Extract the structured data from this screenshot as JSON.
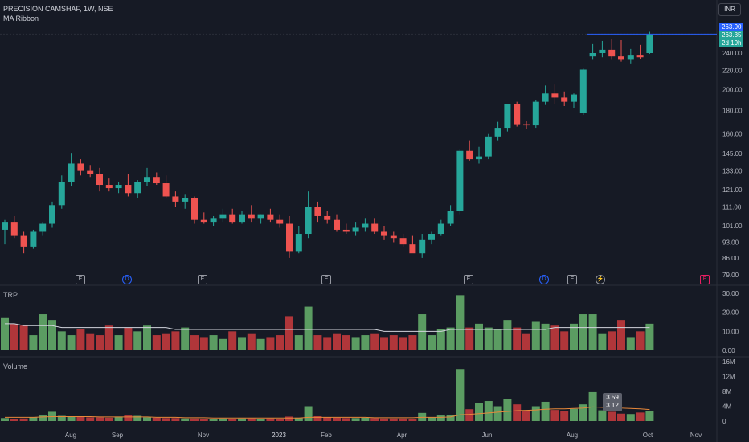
{
  "header": {
    "title": "PRECISION CAMSHAF, 1W, NSE",
    "indicator": "MA Ribbon",
    "currency": "INR"
  },
  "price_tags": {
    "line": "263.90",
    "last": "263.35",
    "countdown": "2d 19h"
  },
  "events": [
    "E",
    "D",
    "E",
    "E",
    "E",
    "D",
    "E",
    "⚡",
    "E"
  ],
  "panes": {
    "trp": {
      "label": "TRP"
    },
    "volume": {
      "label": "Volume",
      "tooltip_a": "3.59",
      "tooltip_b": "3.12"
    }
  },
  "colors": {
    "up": "#26a69a",
    "down": "#ef5350",
    "bg": "#161a25",
    "line": "#2962ff"
  },
  "chart_data": [
    {
      "type": "candlestick",
      "title": "PRECISION CAMSHAF, 1W, NSE",
      "y_axis": {
        "scale": "log",
        "ticks": [
          79,
          86,
          93,
          101,
          111,
          121,
          133,
          145,
          160,
          180,
          200,
          220,
          240
        ],
        "tick_labels": [
          "79.00",
          "86.00",
          "93.00",
          "101.00",
          "111.00",
          "121.00",
          "133.00",
          "145.00",
          "160.00",
          "180.00",
          "200.00",
          "220.00",
          "240.00"
        ]
      },
      "x_axis": {
        "tick_labels": [
          "Aug",
          "Sep",
          "Nov",
          "2023",
          "Feb",
          "Apr",
          "Jun",
          "Aug",
          "Oct",
          "Nov"
        ]
      },
      "ohlc": [
        [
          99,
          104,
          92,
          103
        ],
        [
          103,
          106,
          95,
          96
        ],
        [
          96,
          98,
          88,
          91
        ],
        [
          91,
          99,
          90,
          98
        ],
        [
          98,
          103,
          96,
          102
        ],
        [
          102,
          114,
          100,
          112
        ],
        [
          112,
          130,
          110,
          126
        ],
        [
          126,
          145,
          123,
          138
        ],
        [
          138,
          141,
          130,
          133
        ],
        [
          133,
          137,
          129,
          131
        ],
        [
          131,
          135,
          120,
          124
        ],
        [
          124,
          128,
          120,
          122
        ],
        [
          122,
          126,
          119,
          124
        ],
        [
          124,
          131,
          117,
          119
        ],
        [
          119,
          127,
          116,
          126
        ],
        [
          126,
          135,
          123,
          129
        ],
        [
          129,
          132,
          124,
          125
        ],
        [
          125,
          130,
          116,
          117
        ],
        [
          117,
          120,
          111,
          114
        ],
        [
          114,
          118,
          110,
          116
        ],
        [
          116,
          117,
          102,
          104
        ],
        [
          104,
          108,
          102,
          103
        ],
        [
          103,
          106,
          101,
          105
        ],
        [
          105,
          110,
          103,
          107
        ],
        [
          107,
          110,
          102,
          103
        ],
        [
          103,
          109,
          102,
          107
        ],
        [
          107,
          112,
          103,
          105
        ],
        [
          105,
          107,
          102,
          107
        ],
        [
          107,
          110,
          103,
          104
        ],
        [
          104,
          107,
          100,
          102
        ],
        [
          102,
          106,
          86,
          89
        ],
        [
          89,
          101,
          88,
          97
        ],
        [
          97,
          120,
          95,
          111
        ],
        [
          111,
          114,
          103,
          106
        ],
        [
          106,
          109,
          102,
          104
        ],
        [
          104,
          107,
          98,
          99
        ],
        [
          99,
          102,
          97,
          98
        ],
        [
          98,
          103,
          96,
          100
        ],
        [
          100,
          105,
          98,
          102
        ],
        [
          102,
          105,
          97,
          98
        ],
        [
          98,
          101,
          94,
          96
        ],
        [
          96,
          98,
          93,
          95
        ],
        [
          95,
          97,
          91,
          92
        ],
        [
          92,
          96,
          89,
          88
        ],
        [
          88,
          97,
          86,
          94
        ],
        [
          94,
          98,
          92,
          97
        ],
        [
          97,
          104,
          96,
          102
        ],
        [
          102,
          112,
          101,
          109
        ],
        [
          109,
          148,
          107,
          147
        ],
        [
          147,
          155,
          140,
          141
        ],
        [
          141,
          150,
          138,
          143
        ],
        [
          143,
          160,
          141,
          158
        ],
        [
          158,
          170,
          155,
          165
        ],
        [
          165,
          186,
          162,
          186
        ],
        [
          186,
          188,
          166,
          168
        ],
        [
          168,
          171,
          164,
          167
        ],
        [
          167,
          190,
          165,
          188
        ],
        [
          188,
          204,
          185,
          196
        ],
        [
          196,
          205,
          186,
          192
        ],
        [
          192,
          198,
          184,
          188
        ],
        [
          188,
          196,
          182,
          195
        ],
        [
          178,
          222,
          176,
          221
        ],
        [
          236,
          251,
          232,
          240
        ],
        [
          240,
          255,
          235,
          244
        ],
        [
          244,
          258,
          232,
          236
        ],
        [
          236,
          256,
          230,
          232
        ],
        [
          232,
          245,
          227,
          237
        ],
        [
          237,
          250,
          233,
          235
        ],
        [
          240,
          267,
          239,
          263.35
        ]
      ]
    },
    {
      "type": "bar",
      "title": "TRP",
      "y_axis": {
        "ticks": [
          0,
          10,
          20,
          30
        ],
        "tick_labels": [
          "0.00",
          "10.00",
          "20.00",
          "30.00"
        ]
      },
      "values": [
        17,
        14,
        13,
        8,
        19,
        16,
        10,
        8,
        11,
        9,
        8,
        13,
        8,
        12,
        10,
        13,
        8,
        9,
        10,
        12,
        8,
        7,
        8,
        6,
        10,
        7,
        9,
        6,
        7,
        8,
        18,
        8,
        23,
        8,
        7,
        9,
        8,
        7,
        8,
        9,
        7,
        8,
        7,
        8,
        19,
        8,
        11,
        12,
        29,
        12,
        14,
        12,
        11,
        16,
        12,
        9,
        15,
        14,
        13,
        10,
        14,
        19,
        19,
        9,
        10,
        16,
        7,
        10,
        14
      ],
      "ma": [
        14,
        14,
        13,
        13,
        13,
        13,
        12,
        12,
        12,
        12,
        12,
        12,
        12,
        12,
        12,
        12,
        12,
        12,
        11,
        11,
        11,
        11,
        11,
        11,
        11,
        11,
        11,
        11,
        11,
        11,
        11,
        11,
        11,
        11,
        11,
        11,
        11,
        11,
        11,
        11,
        10,
        10,
        10,
        10,
        10,
        10,
        10,
        11,
        11,
        11,
        11,
        11,
        11,
        11,
        11,
        11,
        11,
        11,
        12,
        12,
        12,
        12,
        12,
        12,
        12,
        12,
        12,
        12,
        12
      ]
    },
    {
      "type": "bar",
      "title": "Volume",
      "y_axis": {
        "ticks": [
          0,
          4,
          8,
          12,
          16
        ],
        "tick_labels": [
          "0",
          "4M",
          "8M",
          "12M",
          "16M"
        ]
      },
      "values": [
        0.8,
        0.6,
        0.7,
        1.0,
        1.5,
        2.5,
        1.4,
        1.2,
        1.1,
        1.0,
        1.0,
        0.9,
        1.2,
        1.5,
        1.4,
        1.0,
        0.9,
        0.8,
        0.8,
        0.7,
        0.7,
        0.6,
        0.6,
        0.7,
        0.6,
        0.7,
        0.7,
        0.6,
        0.7,
        0.6,
        1.2,
        0.9,
        4.0,
        1.3,
        1.0,
        0.9,
        0.8,
        0.8,
        0.9,
        0.8,
        0.7,
        0.7,
        0.7,
        0.6,
        2.2,
        1.0,
        1.5,
        1.7,
        14.0,
        3.2,
        4.8,
        5.4,
        4.0,
        6.0,
        4.5,
        2.8,
        4.0,
        5.2,
        3.0,
        2.6,
        3.3,
        4.5,
        7.8,
        2.9,
        2.5,
        2.0,
        1.9,
        2.3,
        2.7
      ],
      "ma": [
        1.0,
        1.0,
        1.0,
        1.0,
        1.1,
        1.2,
        1.2,
        1.2,
        1.2,
        1.2,
        1.1,
        1.1,
        1.1,
        1.1,
        1.1,
        1.1,
        1.0,
        1.0,
        1.0,
        0.9,
        0.9,
        0.9,
        0.8,
        0.8,
        0.8,
        0.8,
        0.8,
        0.8,
        0.8,
        0.8,
        0.8,
        0.8,
        1.0,
        1.0,
        1.0,
        1.0,
        1.0,
        1.0,
        1.0,
        0.9,
        0.9,
        0.9,
        0.9,
        0.9,
        1.0,
        1.0,
        1.0,
        1.1,
        1.7,
        1.8,
        2.0,
        2.2,
        2.4,
        2.6,
        2.8,
        2.9,
        3.0,
        3.2,
        3.3,
        3.3,
        3.4,
        3.5,
        3.8,
        3.7,
        3.6,
        3.5,
        3.4,
        3.3,
        3.12
      ]
    }
  ]
}
